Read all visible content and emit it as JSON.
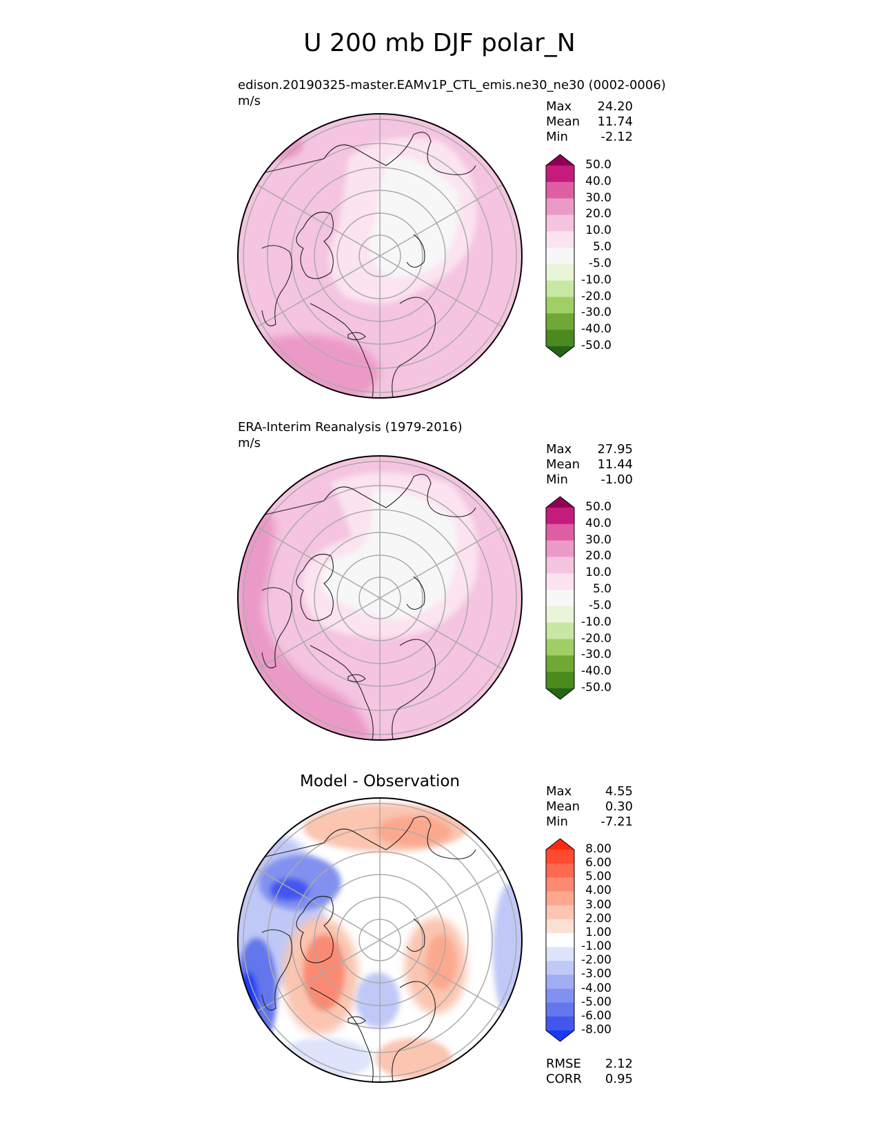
{
  "figure": {
    "title": "U 200 mb DJF polar_N"
  },
  "panels": [
    {
      "title": "edison.20190325-master.EAMv1P_CTL_emis.ne30_ne30 (0002-0006)",
      "units": "m/s",
      "stats": {
        "max_label": "Max",
        "max": "24.20",
        "mean_label": "Mean",
        "mean": "11.74",
        "min_label": "Min",
        "min": "-2.12"
      }
    },
    {
      "title": "ERA-Interim Reanalysis (1979-2016)",
      "units": "m/s",
      "stats": {
        "max_label": "Max",
        "max": "27.95",
        "mean_label": "Mean",
        "mean": "11.44",
        "min_label": "Min",
        "min": "-1.00"
      }
    },
    {
      "title": "Model - Observation",
      "units": "",
      "stats": {
        "max_label": "Max",
        "max": "4.55",
        "mean_label": "Mean",
        "mean": "0.30",
        "min_label": "Min",
        "min": "-7.21"
      },
      "metrics": {
        "rmse_label": "RMSE",
        "rmse": "2.12",
        "corr_label": "CORR",
        "corr": "0.95"
      }
    }
  ],
  "chart_data": [
    {
      "type": "heatmap",
      "projection": "north-polar-stereographic",
      "title": "edison.20190325-master.EAMv1P_CTL_emis.ne30_ne30 (0002-0006)",
      "units": "m/s",
      "colorbar": {
        "levels": [
          "50.0",
          "40.0",
          "30.0",
          "20.0",
          "10.0",
          "5.0",
          "-5.0",
          "-10.0",
          "-20.0",
          "-30.0",
          "-40.0",
          "-50.0"
        ],
        "colors": [
          "#8e0152",
          "#c51b7d",
          "#de5fa3",
          "#eb9ac7",
          "#f4c4e0",
          "#fbe3ef",
          "#f7f7f7",
          "#e9f5d8",
          "#c8e7a2",
          "#9fcf65",
          "#6fa834",
          "#4a8a1f",
          "#276419"
        ]
      },
      "stats": {
        "max": 24.2,
        "mean": 11.74,
        "min": -2.12
      }
    },
    {
      "type": "heatmap",
      "projection": "north-polar-stereographic",
      "title": "ERA-Interim Reanalysis (1979-2016)",
      "units": "m/s",
      "colorbar": {
        "levels": [
          "50.0",
          "40.0",
          "30.0",
          "20.0",
          "10.0",
          "5.0",
          "-5.0",
          "-10.0",
          "-20.0",
          "-30.0",
          "-40.0",
          "-50.0"
        ],
        "colors": [
          "#8e0152",
          "#c51b7d",
          "#de5fa3",
          "#eb9ac7",
          "#f4c4e0",
          "#fbe3ef",
          "#f7f7f7",
          "#e9f5d8",
          "#c8e7a2",
          "#9fcf65",
          "#6fa834",
          "#4a8a1f",
          "#276419"
        ]
      },
      "stats": {
        "max": 27.95,
        "mean": 11.44,
        "min": -1.0
      }
    },
    {
      "type": "heatmap",
      "projection": "north-polar-stereographic",
      "title": "Model - Observation",
      "colorbar": {
        "levels": [
          "8.00",
          "6.00",
          "5.00",
          "4.00",
          "3.00",
          "2.00",
          "1.00",
          "-1.00",
          "-2.00",
          "-3.00",
          "-4.00",
          "-5.00",
          "-6.00",
          "-8.00"
        ],
        "colors": [
          "#ff2a0c",
          "#fe4a2e",
          "#fd6a50",
          "#fc8a72",
          "#fca88f",
          "#fbc5b0",
          "#fbe0d3",
          "#ffffff",
          "#dfe3fb",
          "#c0c8f7",
          "#a0adf3",
          "#8291ef",
          "#6476ec",
          "#4257ee",
          "#1a3af7"
        ]
      },
      "stats": {
        "max": 4.55,
        "mean": 0.3,
        "min": -7.21
      },
      "metrics": {
        "rmse": 2.12,
        "corr": 0.95
      }
    }
  ]
}
